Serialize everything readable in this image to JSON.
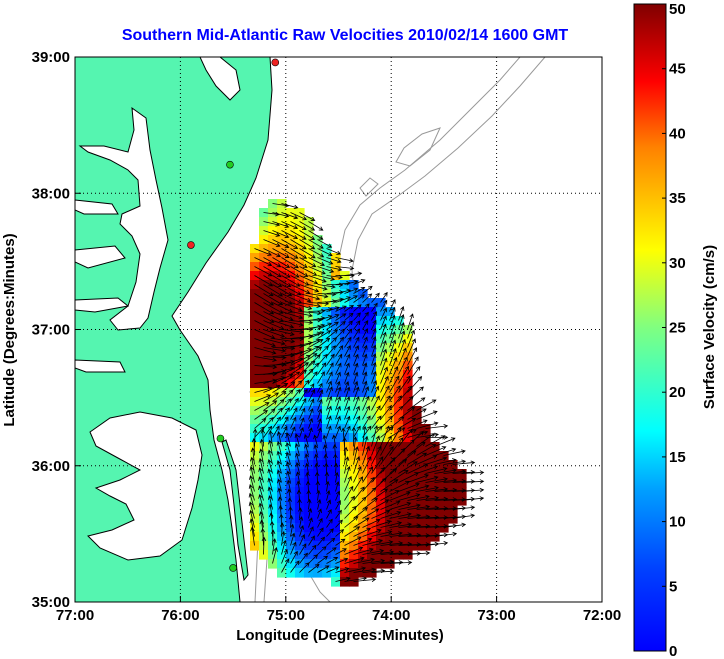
{
  "title": "Southern Mid-Atlantic Raw Velocities 2010/02/14 1600 GMT",
  "xlabel": "Longitude (Degrees:Minutes)",
  "ylabel": "Latitude (Degrees:Minutes)",
  "x_ticks": [
    "77:00",
    "76:00",
    "75:00",
    "74:00",
    "73:00",
    "72:00"
  ],
  "y_ticks": [
    "39:00",
    "38:00",
    "37:00",
    "36:00",
    "35:00"
  ],
  "colorbar": {
    "label": "Surface Velocity (cm/s)",
    "min": 0,
    "max": 50,
    "ticks": [
      "50",
      "45",
      "40",
      "35",
      "30",
      "25",
      "20",
      "15",
      "10",
      "5",
      "0"
    ],
    "colormap": "jet"
  },
  "colors": {
    "land": "#55f5b0",
    "water": "#ffffff",
    "coast": "#000000",
    "isobath": "#999999",
    "grid": "#000000",
    "title": "#0000ff",
    "station_green": "#22cc22",
    "station_red": "#ee2222"
  },
  "map": {
    "lon_range": [
      -77,
      -72
    ],
    "lat_range": [
      35,
      39
    ],
    "grid": "dotted"
  },
  "stations": [
    {
      "lon": -75.1,
      "lat": 38.96,
      "color": "red"
    },
    {
      "lon": -75.9,
      "lat": 37.62,
      "color": "red"
    },
    {
      "lon": -75.53,
      "lat": 38.21,
      "color": "green"
    },
    {
      "lon": -75.62,
      "lat": 36.2,
      "color": "green"
    },
    {
      "lon": -75.5,
      "lat": 35.25,
      "color": "green"
    }
  ]
}
